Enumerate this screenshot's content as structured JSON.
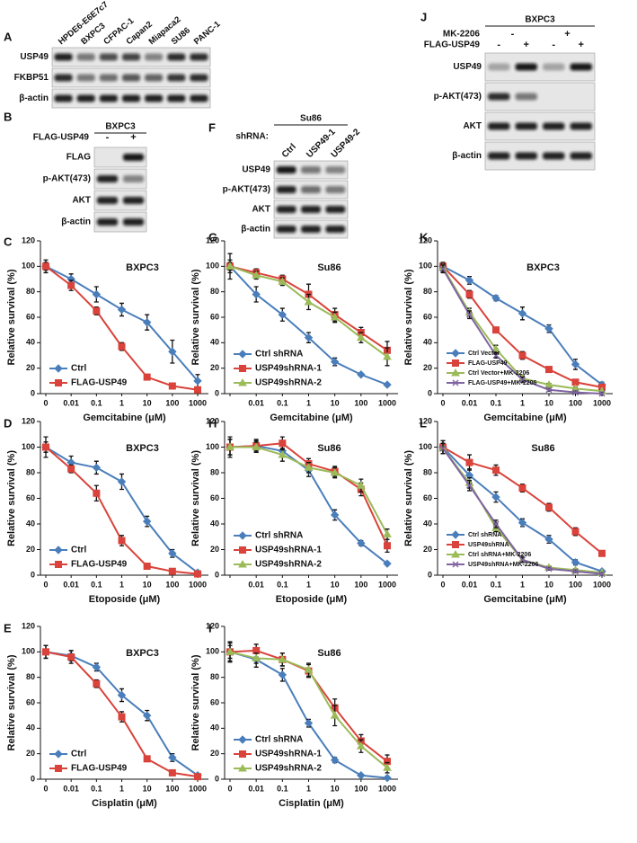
{
  "blots": [
    {
      "panel": "A",
      "lanes": [
        "HPDE6-E6E7c7",
        "BXPC3",
        "CFPAC-1",
        "Capan2",
        "Miapaca2",
        "SU86",
        "PANC-1"
      ],
      "rows": [
        "USP49",
        "FKBP51",
        "β-actin"
      ]
    },
    {
      "panel": "B",
      "cell_line": "BXPC3",
      "conditions": [
        {
          "name": "FLAG-USP49",
          "marks": [
            "-",
            "+"
          ]
        }
      ],
      "rows": [
        "FLAG",
        "p-AKT(473)",
        "AKT",
        "β-actin"
      ]
    },
    {
      "panel": "F",
      "cell_line": "Su86",
      "conditions": [
        {
          "name": "shRNA:",
          "marks": [
            "Ctrl",
            "USP49-1",
            "USP49-2"
          ]
        }
      ],
      "rows": [
        "USP49",
        "p-AKT(473)",
        "AKT",
        "β-actin"
      ]
    },
    {
      "panel": "J",
      "cell_line": "BXPC3",
      "conditions": [
        {
          "name": "MK-2206",
          "marks": [
            "-",
            "+"
          ]
        },
        {
          "name": "FLAG-USP49",
          "marks": [
            "-",
            "+",
            "-",
            "+"
          ]
        }
      ],
      "rows": [
        "USP49",
        "p-AKT(473)",
        "AKT",
        "β-actin"
      ]
    }
  ],
  "chart_data": [
    {
      "type": "line",
      "panel": "C",
      "title": "BXPC3",
      "xlabel": "Gemcitabine (μM)",
      "ylabel": "Relative survival (%)",
      "categories": [
        "0",
        "0.01",
        "0.1",
        "1",
        "10",
        "100",
        "1000"
      ],
      "ylim": [
        0,
        120
      ],
      "yticks": [
        0,
        20,
        40,
        60,
        80,
        100,
        120
      ],
      "legend": "lower left",
      "series": [
        {
          "name": "Ctrl",
          "color": "#4a7ebb",
          "values": [
            100,
            90,
            78,
            66,
            56,
            33,
            10
          ],
          "errors": [
            5,
            4,
            6,
            5,
            6,
            9,
            5
          ]
        },
        {
          "name": "FLAG-USP49",
          "color": "#d9433b",
          "values": [
            100,
            85,
            65,
            37,
            13,
            6,
            3
          ],
          "errors": [
            3,
            4,
            3,
            3,
            2,
            1,
            1
          ]
        }
      ]
    },
    {
      "type": "line",
      "panel": "D",
      "title": "BXPC3",
      "xlabel": "Etoposide (μM)",
      "ylabel": "Relative survival (%)",
      "categories": [
        "0",
        "0.01",
        "0.1",
        "1",
        "10",
        "100",
        "1000"
      ],
      "ylim": [
        0,
        120
      ],
      "yticks": [
        0,
        20,
        40,
        60,
        80,
        100,
        120
      ],
      "legend": "lower left",
      "series": [
        {
          "name": "Ctrl",
          "color": "#4a7ebb",
          "values": [
            100,
            88,
            84,
            73,
            42,
            17,
            2
          ],
          "errors": [
            8,
            5,
            5,
            6,
            4,
            3,
            1
          ]
        },
        {
          "name": "FLAG-USP49",
          "color": "#d9433b",
          "values": [
            100,
            83,
            64,
            27,
            7,
            3,
            1
          ],
          "errors": [
            4,
            3,
            6,
            4,
            1,
            1,
            1
          ]
        }
      ]
    },
    {
      "type": "line",
      "panel": "E",
      "title": "BXPC3",
      "xlabel": "Cisplatin (μM)",
      "ylabel": "Relative survival (%)",
      "categories": [
        "0",
        "0.01",
        "0.1",
        "1",
        "10",
        "100",
        "1000"
      ],
      "ylim": [
        0,
        120
      ],
      "yticks": [
        0,
        20,
        40,
        60,
        80,
        100,
        120
      ],
      "legend": "lower left",
      "series": [
        {
          "name": "Ctrl",
          "color": "#4a7ebb",
          "values": [
            100,
            97,
            88,
            66,
            50,
            17,
            3
          ],
          "errors": [
            5,
            4,
            3,
            5,
            4,
            3,
            1
          ]
        },
        {
          "name": "FLAG-USP49",
          "color": "#d9433b",
          "values": [
            100,
            96,
            75,
            49,
            16,
            5,
            2
          ],
          "errors": [
            5,
            5,
            3,
            4,
            2,
            1,
            1
          ]
        }
      ]
    },
    {
      "type": "line",
      "panel": "G",
      "title": "Su86",
      "xlabel": "Gemcitabine (μM)",
      "ylabel": "Relative survival (%)",
      "categories": [
        null,
        "0.01",
        "0.1",
        "1",
        "10",
        "100",
        "1000"
      ],
      "ylim": [
        0,
        120
      ],
      "yticks": [
        0,
        20,
        40,
        60,
        80,
        100,
        120
      ],
      "legend": "lower left",
      "series": [
        {
          "name": "Ctrl shRNA",
          "color": "#4a7ebb",
          "values": [
            100,
            78,
            62,
            44,
            25,
            15,
            7
          ],
          "errors": [
            10,
            6,
            5,
            4,
            3,
            1,
            1
          ]
        },
        {
          "name": "USP49shRNA-1",
          "color": "#d9433b",
          "values": [
            100,
            95,
            90,
            78,
            62,
            48,
            34
          ],
          "errors": [
            5,
            3,
            3,
            8,
            5,
            4,
            7
          ]
        },
        {
          "name": "USP49shRNA-2",
          "color": "#9bbb59",
          "values": [
            100,
            93,
            88,
            72,
            60,
            44,
            29
          ],
          "errors": [
            3,
            3,
            3,
            6,
            4,
            4,
            7
          ]
        }
      ]
    },
    {
      "type": "line",
      "panel": "H",
      "title": "Su86",
      "xlabel": "Etoposide (μM)",
      "ylabel": "Relative survival (%)",
      "categories": [
        null,
        "0.01",
        "0.1",
        "1",
        "10",
        "100",
        "1000"
      ],
      "ylim": [
        0,
        120
      ],
      "yticks": [
        0,
        20,
        40,
        60,
        80,
        100,
        120
      ],
      "legend": "lower left",
      "series": [
        {
          "name": "Ctrl shRNA",
          "color": "#4a7ebb",
          "values": [
            100,
            101,
            97,
            82,
            47,
            25,
            9
          ],
          "errors": [
            8,
            5,
            4,
            5,
            4,
            2,
            1
          ]
        },
        {
          "name": "USP49shRNA-1",
          "color": "#d9433b",
          "values": [
            100,
            101,
            103,
            87,
            81,
            67,
            23
          ],
          "errors": [
            6,
            4,
            5,
            4,
            4,
            5,
            5
          ]
        },
        {
          "name": "USP49shRNA-2",
          "color": "#9bbb59",
          "values": [
            100,
            100,
            94,
            84,
            80,
            70,
            32
          ],
          "errors": [
            6,
            4,
            5,
            4,
            4,
            5,
            4
          ]
        }
      ]
    },
    {
      "type": "line",
      "panel": "I",
      "title": "Su86",
      "xlabel": "Cisplatin (μM)",
      "ylabel": "Relative survival (%)",
      "categories": [
        "0",
        "0.01",
        "0.1",
        "1",
        "10",
        "100",
        "1000"
      ],
      "ylim": [
        0,
        120
      ],
      "yticks": [
        0,
        20,
        40,
        60,
        80,
        100,
        120
      ],
      "legend": "lower left",
      "series": [
        {
          "name": "Ctrl shRNA",
          "color": "#4a7ebb",
          "values": [
            100,
            94,
            82,
            44,
            15,
            3,
            1
          ],
          "errors": [
            8,
            6,
            5,
            3,
            2,
            1,
            1
          ]
        },
        {
          "name": "USP49shRNA-1",
          "color": "#d9433b",
          "values": [
            100,
            101,
            94,
            85,
            56,
            30,
            14
          ],
          "errors": [
            7,
            5,
            5,
            5,
            7,
            5,
            5
          ]
        },
        {
          "name": "USP49shRNA-2",
          "color": "#9bbb59",
          "values": [
            100,
            95,
            94,
            86,
            50,
            26,
            9
          ],
          "errors": [
            5,
            4,
            5,
            5,
            8,
            5,
            4
          ]
        }
      ]
    },
    {
      "type": "line",
      "panel": "K",
      "title": "BXPC3",
      "xlabel": "Gemcitabine (μM)",
      "ylabel": "Relative survival (%)",
      "categories": [
        "0",
        "0.01",
        "0.1",
        "1",
        "10",
        "100",
        "1000"
      ],
      "ylim": [
        0,
        120
      ],
      "yticks": [
        0,
        20,
        40,
        60,
        80,
        100,
        120
      ],
      "legend": "lower left",
      "series": [
        {
          "name": "Ctrl Vector",
          "color": "#4a7ebb",
          "values": [
            100,
            89,
            75,
            63,
            51,
            23,
            7
          ],
          "errors": [
            3,
            3,
            2,
            5,
            3,
            4,
            2
          ]
        },
        {
          "name": "FLAG-USP49",
          "color": "#d9433b",
          "values": [
            100,
            78,
            50,
            30,
            19,
            9,
            5
          ],
          "errors": [
            3,
            3,
            2,
            3,
            2,
            2,
            1
          ]
        },
        {
          "name": "Ctrl Vector+MK-2206",
          "color": "#9bbb59",
          "values": [
            99,
            64,
            35,
            12,
            7,
            4,
            2
          ],
          "errors": [
            3,
            3,
            3,
            2,
            1,
            1,
            1
          ]
        },
        {
          "name": "FLAG-USP49+MK-2206",
          "color": "#8064a2",
          "values": [
            98,
            62,
            30,
            11,
            3,
            1,
            0
          ],
          "errors": [
            3,
            3,
            2,
            2,
            1,
            1,
            1
          ]
        }
      ]
    },
    {
      "type": "line",
      "panel": "L",
      "title": "Su86",
      "xlabel": "Gemcitabine (μM)",
      "ylabel": "Relative survival (%)",
      "categories": [
        "0",
        "0.01",
        "0.1",
        "1",
        "10",
        "100",
        "1000"
      ],
      "ylim": [
        0,
        120
      ],
      "yticks": [
        0,
        20,
        40,
        60,
        80,
        100,
        120
      ],
      "legend": "lower left",
      "series": [
        {
          "name": "Ctrl shRNA",
          "color": "#4a7ebb",
          "values": [
            100,
            78,
            61,
            41,
            28,
            10,
            3
          ],
          "errors": [
            5,
            5,
            4,
            3,
            3,
            2,
            1
          ]
        },
        {
          "name": "USP49shRNA",
          "color": "#d9433b",
          "values": [
            100,
            88,
            82,
            68,
            53,
            34,
            17
          ],
          "errors": [
            5,
            6,
            4,
            3,
            3,
            3,
            1
          ]
        },
        {
          "name": "Ctrl shRNA+MK-2206",
          "color": "#9bbb59",
          "values": [
            99,
            72,
            37,
            12,
            6,
            4,
            2
          ],
          "errors": [
            4,
            4,
            3,
            2,
            1,
            1,
            1
          ]
        },
        {
          "name": "USP49shRNA+MK-2206",
          "color": "#8064a2",
          "values": [
            99,
            70,
            40,
            12,
            5,
            3,
            1
          ],
          "errors": [
            4,
            4,
            3,
            2,
            1,
            1,
            1
          ]
        }
      ]
    }
  ]
}
